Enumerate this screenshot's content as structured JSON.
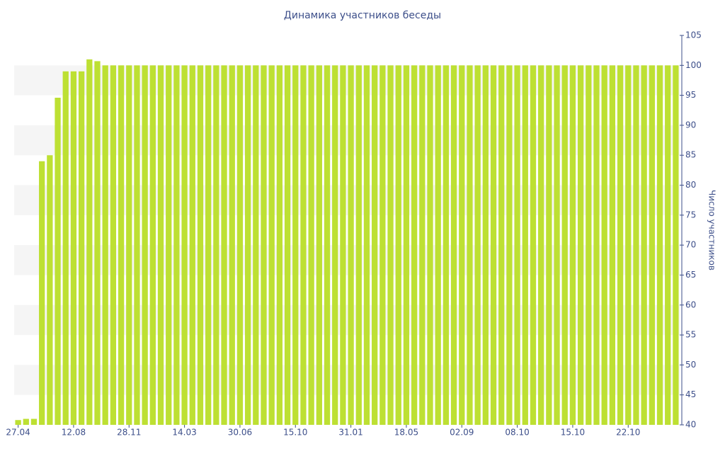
{
  "chart_data": {
    "type": "bar",
    "title": "Динамика участников беседы",
    "y_axis_label": "Число участников",
    "categories": [
      "27.04",
      null,
      null,
      null,
      null,
      null,
      null,
      "12.08",
      null,
      null,
      null,
      null,
      null,
      null,
      "28.11",
      null,
      null,
      null,
      null,
      null,
      null,
      "14.03",
      null,
      null,
      null,
      null,
      null,
      null,
      "30.06",
      null,
      null,
      null,
      null,
      null,
      null,
      "15.10",
      null,
      null,
      null,
      null,
      null,
      null,
      "31.01",
      null,
      null,
      null,
      null,
      null,
      null,
      "18.05",
      null,
      null,
      null,
      null,
      null,
      null,
      "02.09",
      null,
      null,
      null,
      null,
      null,
      null,
      "08.10",
      null,
      null,
      null,
      null,
      null,
      null,
      "15.10",
      null,
      null,
      null,
      null,
      null,
      null,
      "22.10",
      null,
      null,
      null,
      null,
      null,
      null
    ],
    "values": [
      40.8,
      41,
      41,
      84,
      85,
      94.6,
      99,
      99,
      99,
      101,
      100.7,
      100,
      100,
      100,
      100,
      100,
      100,
      100,
      100,
      100,
      100,
      100,
      100,
      100,
      100,
      100,
      100,
      100,
      100,
      100,
      100,
      100,
      100,
      100,
      100,
      100,
      100,
      100,
      100,
      100,
      100,
      100,
      100,
      100,
      100,
      100,
      100,
      100,
      100,
      100,
      100,
      100,
      100,
      100,
      100,
      100,
      100,
      100,
      100,
      100,
      100,
      100,
      100,
      100,
      100,
      100,
      100,
      100,
      100,
      100,
      100,
      100,
      100,
      100,
      100,
      100,
      100,
      100,
      100,
      100,
      100,
      100,
      100,
      100
    ],
    "color": "#bde033",
    "ylim": [
      40,
      105
    ],
    "yticks": [
      40,
      45,
      50,
      55,
      60,
      65,
      70,
      75,
      80,
      85,
      90,
      95,
      100,
      105
    ],
    "y_axis_side": "right",
    "banded_background": true
  }
}
